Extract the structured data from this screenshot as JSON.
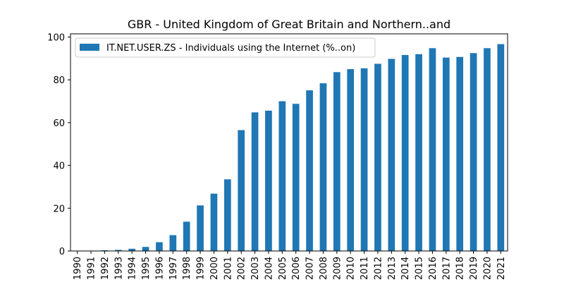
{
  "chart_data": {
    "type": "bar",
    "title": "GBR - United Kingdom of Great Britain and Northern..and",
    "xlabel": "",
    "ylabel": "",
    "categories": [
      "1990",
      "1991",
      "1992",
      "1993",
      "1994",
      "1995",
      "1996",
      "1997",
      "1998",
      "1999",
      "2000",
      "2001",
      "2002",
      "2003",
      "2004",
      "2005",
      "2006",
      "2007",
      "2008",
      "2009",
      "2010",
      "2011",
      "2012",
      "2013",
      "2014",
      "2015",
      "2016",
      "2017",
      "2018",
      "2019",
      "2020",
      "2021"
    ],
    "series": [
      {
        "name": "IT.NET.USER.ZS - Individuals using the Internet (%..on)",
        "color": "#1f77b4",
        "values": [
          0.09,
          0.17,
          0.35,
          0.52,
          1.04,
          1.9,
          4.1,
          7.4,
          13.7,
          21.3,
          26.8,
          33.5,
          56.5,
          64.8,
          65.6,
          70.0,
          68.8,
          75.1,
          78.4,
          83.6,
          85.0,
          85.4,
          87.5,
          89.8,
          91.6,
          92.0,
          94.8,
          90.4,
          90.7,
          92.5,
          94.8,
          96.7
        ]
      }
    ],
    "ylim": [
      0,
      101.5
    ],
    "yticks": [
      0,
      20,
      40,
      60,
      80,
      100
    ],
    "grid": false,
    "legend_position": "top-left"
  }
}
